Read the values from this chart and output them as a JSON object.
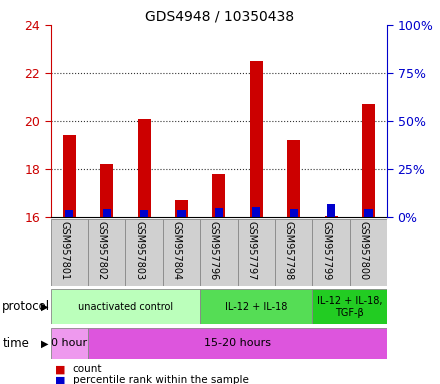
{
  "title": "GDS4948 / 10350438",
  "samples": [
    "GSM957801",
    "GSM957802",
    "GSM957803",
    "GSM957804",
    "GSM957796",
    "GSM957797",
    "GSM957798",
    "GSM957799",
    "GSM957800"
  ],
  "count_values": [
    19.4,
    18.2,
    20.1,
    16.7,
    17.8,
    22.5,
    19.2,
    16.05,
    20.7
  ],
  "percentile_values": [
    3.5,
    4.0,
    3.5,
    3.5,
    4.5,
    5.0,
    4.0,
    6.5,
    4.0
  ],
  "ylim": [
    16,
    24
  ],
  "ylim_right": [
    0,
    100
  ],
  "yticks_left": [
    16,
    18,
    20,
    22,
    24
  ],
  "yticks_right": [
    0,
    25,
    50,
    75,
    100
  ],
  "bar_bottom": 16,
  "count_color": "#cc0000",
  "percentile_color": "#0000cc",
  "protocol_groups": [
    {
      "label": "unactivated control",
      "start": 0,
      "end": 4,
      "color": "#bbffbb"
    },
    {
      "label": "IL-12 + IL-18",
      "start": 4,
      "end": 7,
      "color": "#55dd55"
    },
    {
      "label": "IL-12 + IL-18,\nTGF-β",
      "start": 7,
      "end": 9,
      "color": "#22cc22"
    }
  ],
  "time_groups": [
    {
      "label": "0 hour",
      "start": 0,
      "end": 1,
      "color": "#ee99ee"
    },
    {
      "label": "15-20 hours",
      "start": 1,
      "end": 9,
      "color": "#dd55dd"
    }
  ],
  "protocol_label": "protocol",
  "time_label": "time",
  "legend_count": "count",
  "legend_percentile": "percentile rank within the sample",
  "count_color_left": "#cc0000",
  "percentile_color_right": "#0000cc",
  "dotted_color": "#333333",
  "bar_width": 0.35,
  "percentile_bar_width": 0.22,
  "background_color": "#ffffff"
}
